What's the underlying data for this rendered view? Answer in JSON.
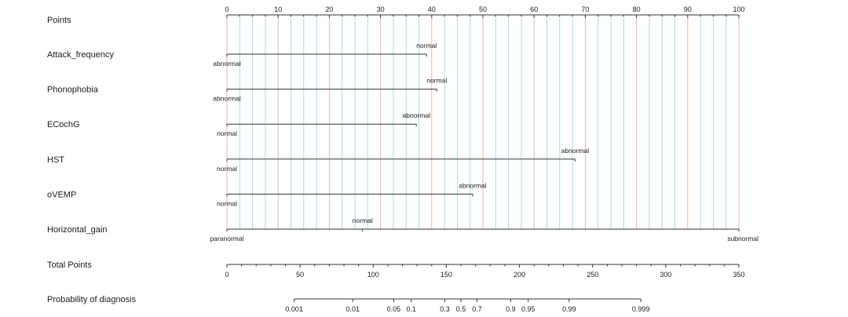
{
  "chart_data": {
    "type": "nomogram",
    "colors": {
      "minor_grid": "#8fd3f0",
      "major_grid": "#f2a0a8",
      "axis": "#333333",
      "text": "#1a1a1a"
    },
    "points_axis": {
      "label": "Points",
      "range": [
        0,
        100
      ],
      "ticks": [
        0,
        10,
        20,
        30,
        40,
        50,
        60,
        70,
        80,
        90,
        100
      ],
      "minor_step": 2.5
    },
    "variables": [
      {
        "name": "Attack_frequency",
        "levels": [
          {
            "label": "abnormal",
            "points": 0
          },
          {
            "label": "normal",
            "points": 39
          }
        ]
      },
      {
        "name": "Phonophobia",
        "levels": [
          {
            "label": "abnormal",
            "points": 0
          },
          {
            "label": "normal",
            "points": 41
          }
        ]
      },
      {
        "name": "ECochG",
        "levels": [
          {
            "label": "normal",
            "points": 0
          },
          {
            "label": "abnormal",
            "points": 37
          }
        ]
      },
      {
        "name": "HST",
        "levels": [
          {
            "label": "normal",
            "points": 0
          },
          {
            "label": "abnormal",
            "points": 68
          }
        ]
      },
      {
        "name": "oVEMP",
        "levels": [
          {
            "label": "normal",
            "points": 0
          },
          {
            "label": "abnormal",
            "points": 48
          }
        ]
      },
      {
        "name": "Horizontal_gain",
        "levels": [
          {
            "label": "paranormal",
            "points": 0
          },
          {
            "label": "normal",
            "points": 26.5
          },
          {
            "label": "subnormal",
            "points": 100
          }
        ]
      }
    ],
    "total_points_axis": {
      "label": "Total Points",
      "range": [
        0,
        350
      ],
      "ticks": [
        0,
        50,
        100,
        150,
        200,
        250,
        300,
        350
      ]
    },
    "probability_axis": {
      "label": "Probability of diagnosis",
      "total_points_range": [
        46,
        283
      ],
      "ticks": [
        {
          "label": "0.001",
          "total_points": 46
        },
        {
          "label": "0.01",
          "total_points": 86
        },
        {
          "label": "0.05",
          "total_points": 114
        },
        {
          "label": "0.1",
          "total_points": 126
        },
        {
          "label": "0.3",
          "total_points": 149
        },
        {
          "label": "0.5",
          "total_points": 160
        },
        {
          "label": "0.7",
          "total_points": 171
        },
        {
          "label": "0.9",
          "total_points": 194
        },
        {
          "label": "0.95",
          "total_points": 206
        },
        {
          "label": "0.99",
          "total_points": 234
        },
        {
          "label": "0.999",
          "total_points": 283
        }
      ]
    }
  }
}
